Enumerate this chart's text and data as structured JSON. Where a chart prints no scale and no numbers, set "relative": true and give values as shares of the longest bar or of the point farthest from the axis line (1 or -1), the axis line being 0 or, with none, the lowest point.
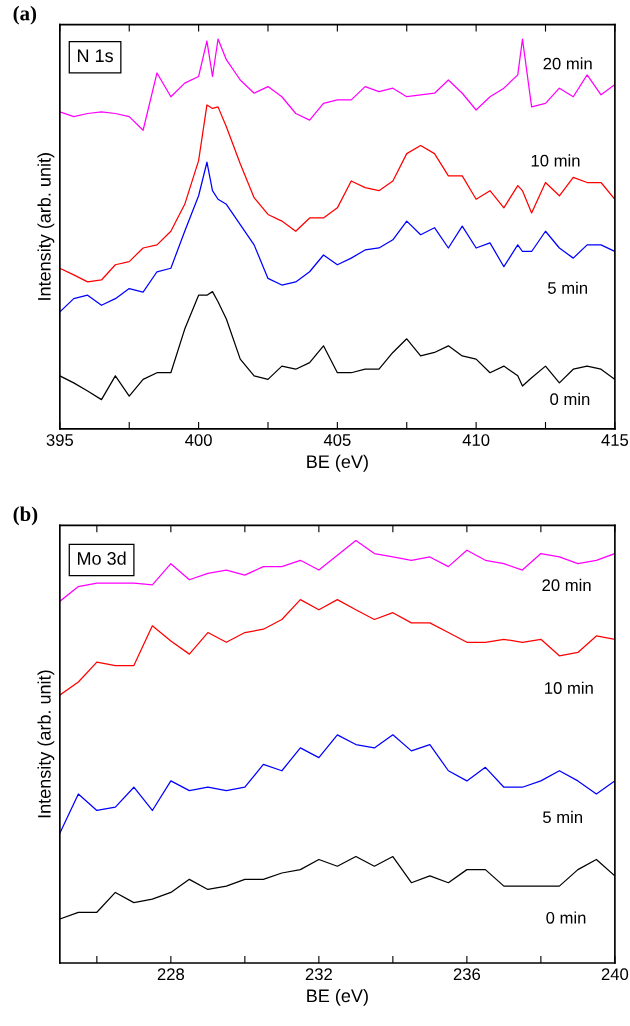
{
  "chart_data": [
    {
      "type": "line",
      "relative": true,
      "xlabel": "BE (eV)",
      "ylabel": "Intensity (arb. unit)",
      "annotations": [
        "(a)",
        "N 1s"
      ],
      "xlim": [
        395,
        415
      ],
      "xticks": [
        395,
        {
          "value": 397.5,
          "label": null
        },
        400,
        {
          "value": 402.5,
          "label": null
        },
        405,
        {
          "value": 407.5,
          "label": null
        },
        410,
        {
          "value": 412.5,
          "label": null
        },
        415
      ],
      "grid": false,
      "legend": false,
      "tick_labels": "x",
      "x": [
        395,
        395.5,
        396,
        396.5,
        397,
        397.5,
        398,
        398.5,
        399,
        399.5,
        400,
        400.3,
        400.5,
        400.7,
        401,
        401.5,
        402,
        402.5,
        403,
        403.5,
        404,
        404.5,
        405,
        405.5,
        406,
        406.5,
        407,
        407.5,
        408,
        408.5,
        409,
        409.5,
        410,
        410.5,
        411,
        411.5,
        411.67,
        412,
        412.5,
        413,
        413.5,
        414,
        414.5,
        415
      ],
      "series": [
        {
          "name": "20 min",
          "color": "#ff00ff",
          "values": [
            0.813,
            0.801,
            0.809,
            0.813,
            0.809,
            0.801,
            0.766,
            0.913,
            0.852,
            0.887,
            0.904,
            0.995,
            0.904,
            1.0,
            0.947,
            0.895,
            0.861,
            0.878,
            0.852,
            0.809,
            0.792,
            0.835,
            0.844,
            0.844,
            0.878,
            0.865,
            0.874,
            0.852,
            0.857,
            0.861,
            0.895,
            0.861,
            0.818,
            0.852,
            0.874,
            0.908,
            1.0,
            0.826,
            0.835,
            0.874,
            0.852,
            0.908,
            0.857,
            0.883
          ]
        },
        {
          "name": "10 min",
          "color": "#ff0000",
          "values": [
            0.412,
            0.395,
            0.377,
            0.382,
            0.421,
            0.429,
            0.464,
            0.472,
            0.507,
            0.576,
            0.688,
            0.831,
            0.822,
            0.826,
            0.775,
            0.68,
            0.593,
            0.55,
            0.533,
            0.507,
            0.541,
            0.541,
            0.567,
            0.636,
            0.619,
            0.611,
            0.636,
            0.706,
            0.727,
            0.706,
            0.649,
            0.649,
            0.589,
            0.611,
            0.567,
            0.624,
            0.611,
            0.554,
            0.632,
            0.598,
            0.645,
            0.632,
            0.632,
            0.589
          ]
        },
        {
          "name": "5 min",
          "color": "#0000ff",
          "values": [
            0.3,
            0.334,
            0.343,
            0.317,
            0.334,
            0.36,
            0.351,
            0.403,
            0.412,
            0.507,
            0.598,
            0.684,
            0.611,
            0.589,
            0.576,
            0.524,
            0.472,
            0.386,
            0.369,
            0.377,
            0.403,
            0.446,
            0.421,
            0.438,
            0.459,
            0.464,
            0.485,
            0.533,
            0.498,
            0.516,
            0.464,
            0.52,
            0.464,
            0.477,
            0.416,
            0.472,
            0.455,
            0.455,
            0.507,
            0.464,
            0.438,
            0.472,
            0.472,
            0.455
          ]
        },
        {
          "name": "0 min",
          "color": "#000000",
          "values": [
            0.136,
            0.118,
            0.097,
            0.075,
            0.136,
            0.084,
            0.127,
            0.144,
            0.144,
            0.256,
            0.343,
            0.343,
            0.352,
            0.326,
            0.282,
            0.179,
            0.136,
            0.127,
            0.161,
            0.153,
            0.17,
            0.213,
            0.144,
            0.144,
            0.153,
            0.153,
            0.196,
            0.231,
            0.187,
            0.196,
            0.213,
            0.187,
            0.179,
            0.144,
            0.161,
            0.136,
            0.11,
            0.131,
            0.161,
            0.118,
            0.153,
            0.161,
            0.153,
            0.127
          ]
        }
      ]
    },
    {
      "type": "line",
      "relative": true,
      "xlabel": "BE (eV)",
      "ylabel": "Intensity (arb. unit)",
      "annotations": [
        "(b)",
        "Mo 3d"
      ],
      "xlim": [
        225,
        240
      ],
      "xticks": [
        {
          "value": 226,
          "label": null
        },
        228,
        {
          "value": 230,
          "label": null
        },
        232,
        {
          "value": 234,
          "label": null
        },
        236,
        {
          "value": 238,
          "label": null
        },
        240
      ],
      "grid": false,
      "legend": false,
      "tick_labels": "x",
      "x": [
        225,
        225.5,
        226,
        226.5,
        227,
        227.5,
        228,
        228.5,
        229,
        229.5,
        230,
        230.5,
        231,
        231.5,
        232,
        232.5,
        233,
        233.5,
        234,
        234.5,
        235,
        235.5,
        236,
        236.5,
        237,
        237.5,
        238,
        238.5,
        239,
        239.5,
        240
      ],
      "series": [
        {
          "name": "20 min",
          "color": "#ff00ff",
          "values": [
            0.856,
            0.891,
            0.899,
            0.899,
            0.899,
            0.895,
            0.945,
            0.907,
            0.922,
            0.93,
            0.918,
            0.938,
            0.938,
            0.953,
            0.93,
            0.965,
            1.0,
            0.969,
            0.961,
            0.953,
            0.961,
            0.938,
            0.977,
            0.953,
            0.945,
            0.93,
            0.969,
            0.961,
            0.945,
            0.953,
            0.969
          ]
        },
        {
          "name": "10 min",
          "color": "#ff0000",
          "values": [
            0.634,
            0.665,
            0.712,
            0.704,
            0.704,
            0.798,
            0.762,
            0.731,
            0.782,
            0.759,
            0.782,
            0.79,
            0.813,
            0.86,
            0.836,
            0.86,
            0.836,
            0.813,
            0.829,
            0.805,
            0.805,
            0.782,
            0.759,
            0.759,
            0.766,
            0.759,
            0.766,
            0.727,
            0.735,
            0.774,
            0.766
          ]
        },
        {
          "name": "5 min",
          "color": "#0000ff",
          "values": [
            0.307,
            0.4,
            0.361,
            0.369,
            0.416,
            0.361,
            0.431,
            0.408,
            0.416,
            0.408,
            0.416,
            0.47,
            0.455,
            0.509,
            0.486,
            0.54,
            0.517,
            0.509,
            0.54,
            0.502,
            0.517,
            0.455,
            0.431,
            0.463,
            0.416,
            0.416,
            0.431,
            0.455,
            0.431,
            0.4,
            0.431
          ]
        },
        {
          "name": "0 min",
          "color": "#000000",
          "values": [
            0.104,
            0.12,
            0.12,
            0.167,
            0.143,
            0.151,
            0.167,
            0.198,
            0.174,
            0.182,
            0.198,
            0.198,
            0.213,
            0.221,
            0.245,
            0.229,
            0.252,
            0.229,
            0.252,
            0.19,
            0.206,
            0.19,
            0.221,
            0.221,
            0.182,
            0.182,
            0.182,
            0.182,
            0.221,
            0.245,
            0.206
          ]
        }
      ]
    }
  ]
}
